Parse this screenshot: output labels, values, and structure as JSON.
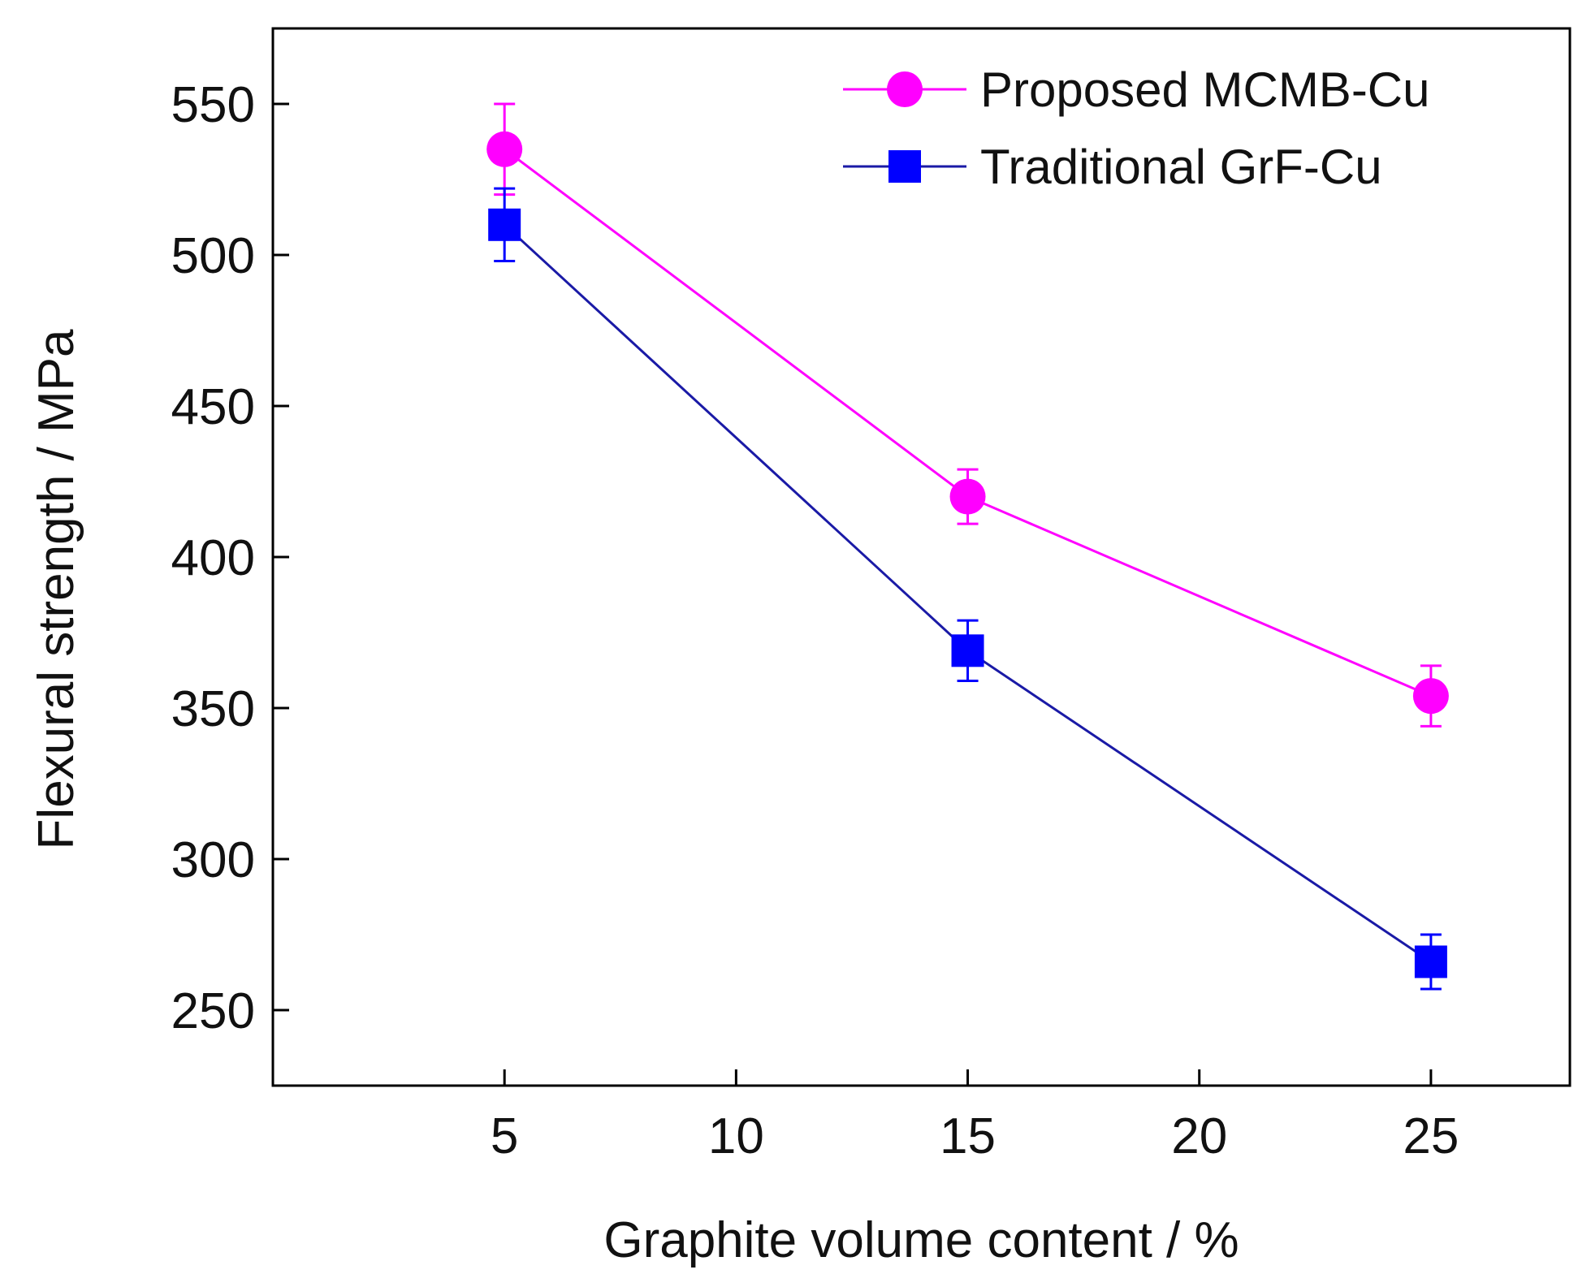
{
  "chart_data": {
    "type": "line",
    "title": "",
    "xlabel": "Graphite volume content / %",
    "ylabel": "Flexural strength / MPa",
    "xlim": [
      0,
      28
    ],
    "ylim": [
      225,
      575
    ],
    "xticks": [
      5,
      10,
      15,
      20,
      25
    ],
    "yticks": [
      250,
      300,
      350,
      400,
      450,
      500,
      550
    ],
    "xtick_labels": [
      "5",
      "10",
      "15",
      "20",
      "25"
    ],
    "ytick_labels": [
      "250",
      "300",
      "350",
      "400",
      "450",
      "500",
      "550"
    ],
    "grid": false,
    "legend_position": "top-right",
    "series": [
      {
        "name": "Proposed MCMB-Cu",
        "color": "#ff00ff",
        "marker": "circle",
        "x": [
          5,
          15,
          25
        ],
        "y": [
          535,
          420,
          354
        ],
        "err": [
          15,
          9,
          10
        ]
      },
      {
        "name": "Traditional GrF-Cu",
        "color": "#0000ff",
        "line_color": "#1a1aa6",
        "marker": "square",
        "x": [
          5,
          15,
          25
        ],
        "y": [
          510,
          369,
          266
        ],
        "err": [
          12,
          10,
          9
        ]
      }
    ]
  }
}
